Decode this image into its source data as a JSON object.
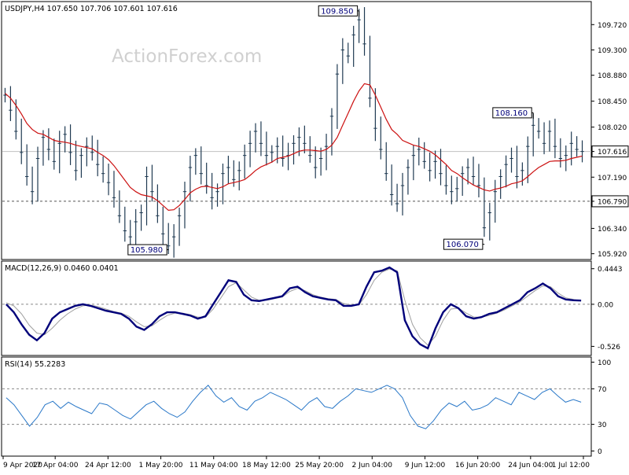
{
  "watermark": "ActionForex.com",
  "colors": {
    "candle": "#1f3a52",
    "ma": "#cc1111",
    "macd": "#00007a",
    "signal": "#a0a0a0",
    "rsi": "#2a78c8",
    "callout_text": "#00007a",
    "border": "#000000",
    "grid_dash": "#888888",
    "price_line": "#c0c0c0"
  },
  "chart_data": [
    {
      "type": "candlestick",
      "title": "USDJPY,H4  107.650 107.706 107.601 107.616",
      "ylim": [
        105.85,
        110.05
      ],
      "y_ticks": [
        "109.720",
        "109.300",
        "108.880",
        "108.450",
        "108.020",
        "107.616",
        "107.190",
        "106.790",
        "106.340",
        "105.920"
      ],
      "y_tick_values": [
        109.72,
        109.3,
        108.88,
        108.45,
        108.02,
        107.616,
        107.19,
        106.79,
        106.34,
        105.92
      ],
      "current_price": "107.616",
      "support_level": "106.790",
      "closes": [
        108.55,
        108.3,
        107.95,
        107.6,
        107.2,
        106.95,
        107.5,
        107.85,
        107.65,
        107.45,
        107.75,
        107.9,
        107.6,
        107.3,
        107.55,
        107.7,
        107.6,
        107.4,
        107.25,
        107.1,
        106.85,
        106.55,
        106.3,
        106.2,
        106.45,
        106.6,
        107.2,
        106.95,
        106.55,
        106.25,
        106.05,
        106.2,
        106.55,
        106.95,
        107.35,
        107.55,
        107.25,
        107.05,
        106.85,
        106.95,
        107.25,
        107.35,
        107.15,
        107.3,
        107.55,
        107.75,
        107.95,
        107.75,
        107.55,
        107.6,
        107.7,
        107.5,
        107.55,
        107.75,
        107.85,
        107.75,
        107.55,
        107.35,
        107.5,
        107.7,
        108.2,
        108.9,
        109.3,
        109.2,
        109.55,
        109.8,
        109.4,
        108.5,
        108.0,
        107.65,
        107.25,
        106.9,
        106.75,
        107.05,
        107.35,
        107.55,
        107.65,
        107.45,
        107.3,
        107.45,
        107.25,
        107.05,
        106.95,
        107.0,
        107.25,
        107.35,
        107.2,
        107.05,
        106.35,
        106.6,
        106.95,
        107.2,
        107.4,
        107.5,
        107.2,
        107.3,
        107.7,
        108.05,
        107.95,
        107.75,
        107.95,
        107.7,
        107.5,
        107.55,
        107.75,
        107.65,
        107.616
      ],
      "ma_values": [
        108.58,
        108.5,
        108.38,
        108.24,
        108.08,
        107.98,
        107.92,
        107.9,
        107.85,
        107.8,
        107.78,
        107.77,
        107.75,
        107.72,
        107.7,
        107.68,
        107.66,
        107.6,
        107.55,
        107.48,
        107.38,
        107.26,
        107.14,
        107.02,
        106.95,
        106.9,
        106.88,
        106.86,
        106.8,
        106.72,
        106.64,
        106.65,
        106.72,
        106.82,
        106.93,
        106.99,
        107.03,
        107.04,
        107.02,
        107.0,
        107.03,
        107.08,
        107.1,
        107.12,
        107.15,
        107.22,
        107.3,
        107.36,
        107.4,
        107.44,
        107.5,
        107.52,
        107.54,
        107.58,
        107.62,
        107.64,
        107.64,
        107.63,
        107.62,
        107.65,
        107.72,
        107.85,
        108.05,
        108.25,
        108.45,
        108.62,
        108.74,
        108.72,
        108.55,
        108.35,
        108.15,
        107.98,
        107.9,
        107.8,
        107.76,
        107.72,
        107.7,
        107.66,
        107.62,
        107.56,
        107.48,
        107.4,
        107.3,
        107.25,
        107.18,
        107.12,
        107.06,
        107.02,
        106.98,
        106.96,
        106.99,
        107.01,
        107.04,
        107.08,
        107.1,
        107.13,
        107.2,
        107.28,
        107.35,
        107.4,
        107.45,
        107.46,
        107.46,
        107.47,
        107.5,
        107.52,
        107.54
      ],
      "annotations": [
        {
          "label": "109.850",
          "value": 109.85
        },
        {
          "label": "108.160",
          "value": 108.16
        },
        {
          "label": "106.070",
          "value": 106.07
        },
        {
          "label": "105.980",
          "value": 105.98
        }
      ],
      "x_tick_labels": [
        "9 Apr 2020",
        "17 Apr 04:00",
        "24 Apr 12:00",
        "1 May 20:00",
        "11 May 04:00",
        "18 May 12:00",
        "25 May 20:00",
        "2 Jun 04:00",
        "9 Jun 12:00",
        "16 Jun 20:00",
        "24 Jun 04:00",
        "1 Jul 12:00"
      ]
    },
    {
      "type": "line",
      "title": "MACD(12,26,9) 0.0460 0.0401",
      "ylim": [
        -0.62,
        0.52
      ],
      "y_ticks": [
        "0.4443",
        "0.00",
        "-0.526"
      ],
      "y_tick_values": [
        0.4443,
        0.0,
        -0.526
      ],
      "series": [
        {
          "values": [
            0.0,
            -0.1,
            -0.25,
            -0.38,
            -0.45,
            -0.36,
            -0.18,
            -0.1,
            -0.06,
            -0.02,
            0.0,
            -0.02,
            -0.05,
            -0.08,
            -0.1,
            -0.12,
            -0.18,
            -0.28,
            -0.32,
            -0.25,
            -0.15,
            -0.1,
            -0.1,
            -0.12,
            -0.14,
            -0.18,
            -0.15,
            0.0,
            0.15,
            0.3,
            0.28,
            0.12,
            0.05,
            0.04,
            0.06,
            0.08,
            0.1,
            0.2,
            0.22,
            0.15,
            0.1,
            0.08,
            0.06,
            0.05,
            -0.02,
            -0.02,
            0.0,
            0.22,
            0.4,
            0.42,
            0.46,
            0.4,
            -0.2,
            -0.4,
            -0.5,
            -0.55,
            -0.3,
            -0.1,
            0.0,
            -0.05,
            -0.15,
            -0.18,
            -0.16,
            -0.12,
            -0.1,
            -0.05,
            0.0,
            0.05,
            0.15,
            0.2,
            0.26,
            0.2,
            0.1,
            0.06,
            0.05,
            0.046
          ]
        },
        {
          "values": [
            0.02,
            -0.02,
            -0.12,
            -0.26,
            -0.36,
            -0.38,
            -0.3,
            -0.2,
            -0.12,
            -0.06,
            -0.02,
            -0.01,
            -0.03,
            -0.06,
            -0.09,
            -0.11,
            -0.15,
            -0.22,
            -0.28,
            -0.27,
            -0.2,
            -0.14,
            -0.11,
            -0.11,
            -0.13,
            -0.16,
            -0.16,
            -0.06,
            0.08,
            0.22,
            0.27,
            0.18,
            0.09,
            0.05,
            0.05,
            0.07,
            0.09,
            0.16,
            0.2,
            0.17,
            0.12,
            0.09,
            0.07,
            0.06,
            0.01,
            -0.01,
            -0.01,
            0.12,
            0.3,
            0.4,
            0.44,
            0.42,
            0.05,
            -0.25,
            -0.42,
            -0.51,
            -0.4,
            -0.2,
            -0.06,
            -0.05,
            -0.11,
            -0.16,
            -0.16,
            -0.14,
            -0.11,
            -0.07,
            -0.02,
            0.03,
            0.1,
            0.17,
            0.23,
            0.22,
            0.14,
            0.08,
            0.06,
            0.04
          ]
        }
      ]
    },
    {
      "type": "line",
      "title": "RSI(14) 55.2283",
      "ylim": [
        -4,
        104
      ],
      "y_ticks": [
        "100",
        "70",
        "30",
        "0"
      ],
      "y_tick_values": [
        100,
        70,
        30,
        0
      ],
      "series": [
        {
          "values": [
            60,
            52,
            40,
            28,
            38,
            52,
            56,
            48,
            55,
            50,
            46,
            42,
            54,
            52,
            46,
            40,
            36,
            44,
            52,
            56,
            48,
            42,
            38,
            44,
            56,
            66,
            74,
            62,
            55,
            60,
            50,
            46,
            56,
            60,
            66,
            62,
            58,
            52,
            46,
            55,
            60,
            50,
            48,
            56,
            62,
            70,
            68,
            66,
            70,
            74,
            70,
            60,
            40,
            28,
            25,
            34,
            46,
            54,
            50,
            56,
            46,
            48,
            52,
            60,
            56,
            52,
            66,
            62,
            58,
            66,
            70,
            62,
            55,
            58,
            55
          ]
        }
      ]
    }
  ]
}
